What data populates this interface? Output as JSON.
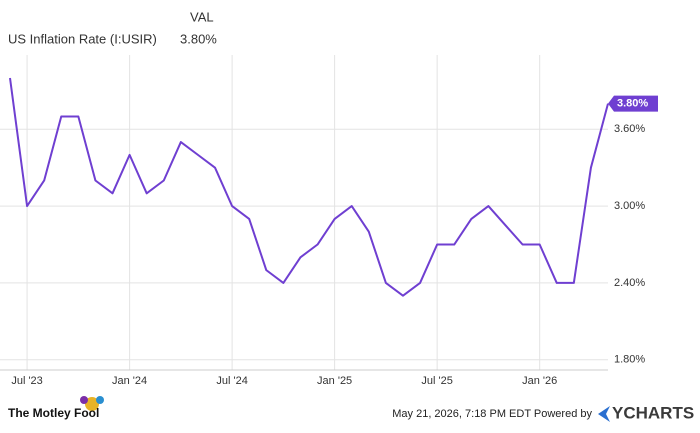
{
  "chart_data": {
    "type": "line",
    "value_column_label": "VAL",
    "series": [
      {
        "name": "US Inflation Rate (I:USIR)",
        "color": "#6f3fd1",
        "last_label": "3.80%",
        "values": [
          4.0,
          3.0,
          3.2,
          3.7,
          3.7,
          3.2,
          3.1,
          3.4,
          3.1,
          3.2,
          3.5,
          3.4,
          3.3,
          3.0,
          2.9,
          2.5,
          2.4,
          2.6,
          2.7,
          2.9,
          3.0,
          2.8,
          2.4,
          2.3,
          2.4,
          2.7,
          2.7,
          2.9,
          3.0,
          2.85,
          2.7,
          2.7,
          2.4,
          2.4,
          3.3,
          3.8
        ]
      }
    ],
    "x": [
      "2023-06",
      "2023-07",
      "2023-08",
      "2023-09",
      "2023-10",
      "2023-11",
      "2023-12",
      "2024-01",
      "2024-02",
      "2024-03",
      "2024-04",
      "2024-05",
      "2024-06",
      "2024-07",
      "2024-08",
      "2024-09",
      "2024-10",
      "2024-11",
      "2024-12",
      "2025-01",
      "2025-02",
      "2025-03",
      "2025-04",
      "2025-05",
      "2025-06",
      "2025-07",
      "2025-08",
      "2025-09",
      "2025-10",
      "2025-11",
      "2025-12",
      "2026-01",
      "2026-02",
      "2026-03",
      "2026-04",
      "2026-05"
    ],
    "xlim": [
      "2023-06",
      "2026-05"
    ],
    "xticks": [
      {
        "value": "2023-07",
        "label": "Jul '23"
      },
      {
        "value": "2024-01",
        "label": "Jan '24"
      },
      {
        "value": "2024-07",
        "label": "Jul '24"
      },
      {
        "value": "2025-01",
        "label": "Jan '25"
      },
      {
        "value": "2025-07",
        "label": "Jul '25"
      },
      {
        "value": "2026-01",
        "label": "Jan '26"
      }
    ],
    "ylim": [
      1.72,
      4.18
    ],
    "yticks": [
      {
        "value": 1.8,
        "label": "1.80%"
      },
      {
        "value": 2.4,
        "label": "2.40%"
      },
      {
        "value": 3.0,
        "label": "3.00%"
      },
      {
        "value": 3.6,
        "label": "3.60%"
      }
    ],
    "grid": true
  },
  "footer": {
    "brand": "The Motley Fool",
    "timestamp": "May 21, 2026, 7:18 PM EDT  Powered by",
    "provider": "YCHARTS"
  }
}
